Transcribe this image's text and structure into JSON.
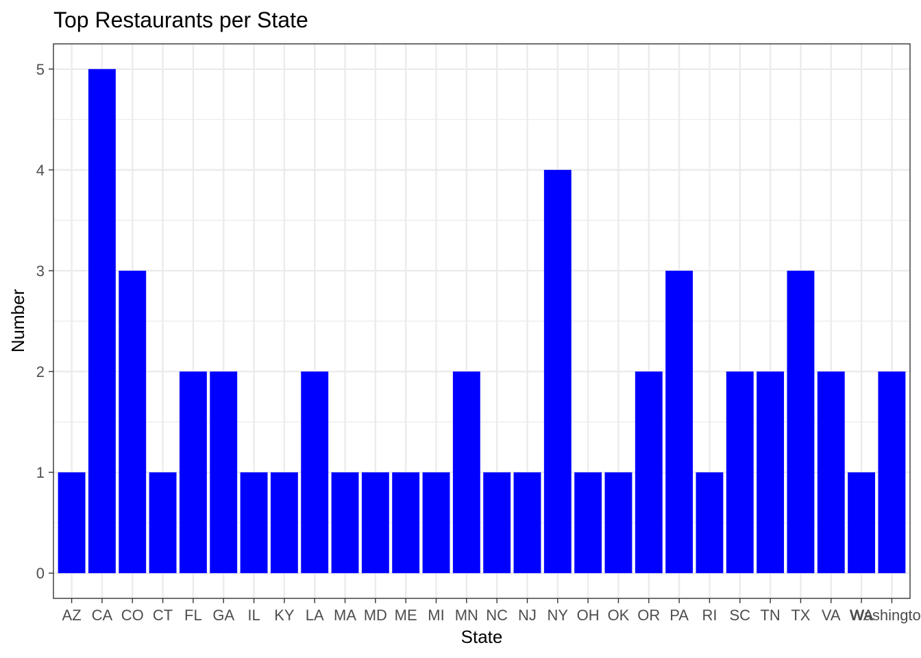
{
  "chart_data": {
    "type": "bar",
    "title": "Top Restaurants per State",
    "xlabel": "State",
    "ylabel": "Number",
    "categories": [
      "AZ",
      "CA",
      "CO",
      "CT",
      "FL",
      "GA",
      "IL",
      "KY",
      "LA",
      "MA",
      "MD",
      "ME",
      "MI",
      "MN",
      "NC",
      "NJ",
      "NY",
      "OH",
      "OK",
      "OR",
      "PA",
      "RI",
      "SC",
      "TN",
      "TX",
      "VA",
      "WA",
      "Washington,"
    ],
    "values": [
      1,
      5,
      3,
      1,
      2,
      2,
      1,
      1,
      2,
      1,
      1,
      1,
      1,
      2,
      1,
      1,
      4,
      1,
      1,
      2,
      3,
      1,
      2,
      2,
      3,
      2,
      1,
      2
    ],
    "yticks": [
      0,
      1,
      2,
      3,
      4,
      5
    ],
    "ylim": [
      -0.25,
      5.25
    ],
    "bar_color": "#0000ff",
    "grid": true,
    "legend": "none"
  }
}
